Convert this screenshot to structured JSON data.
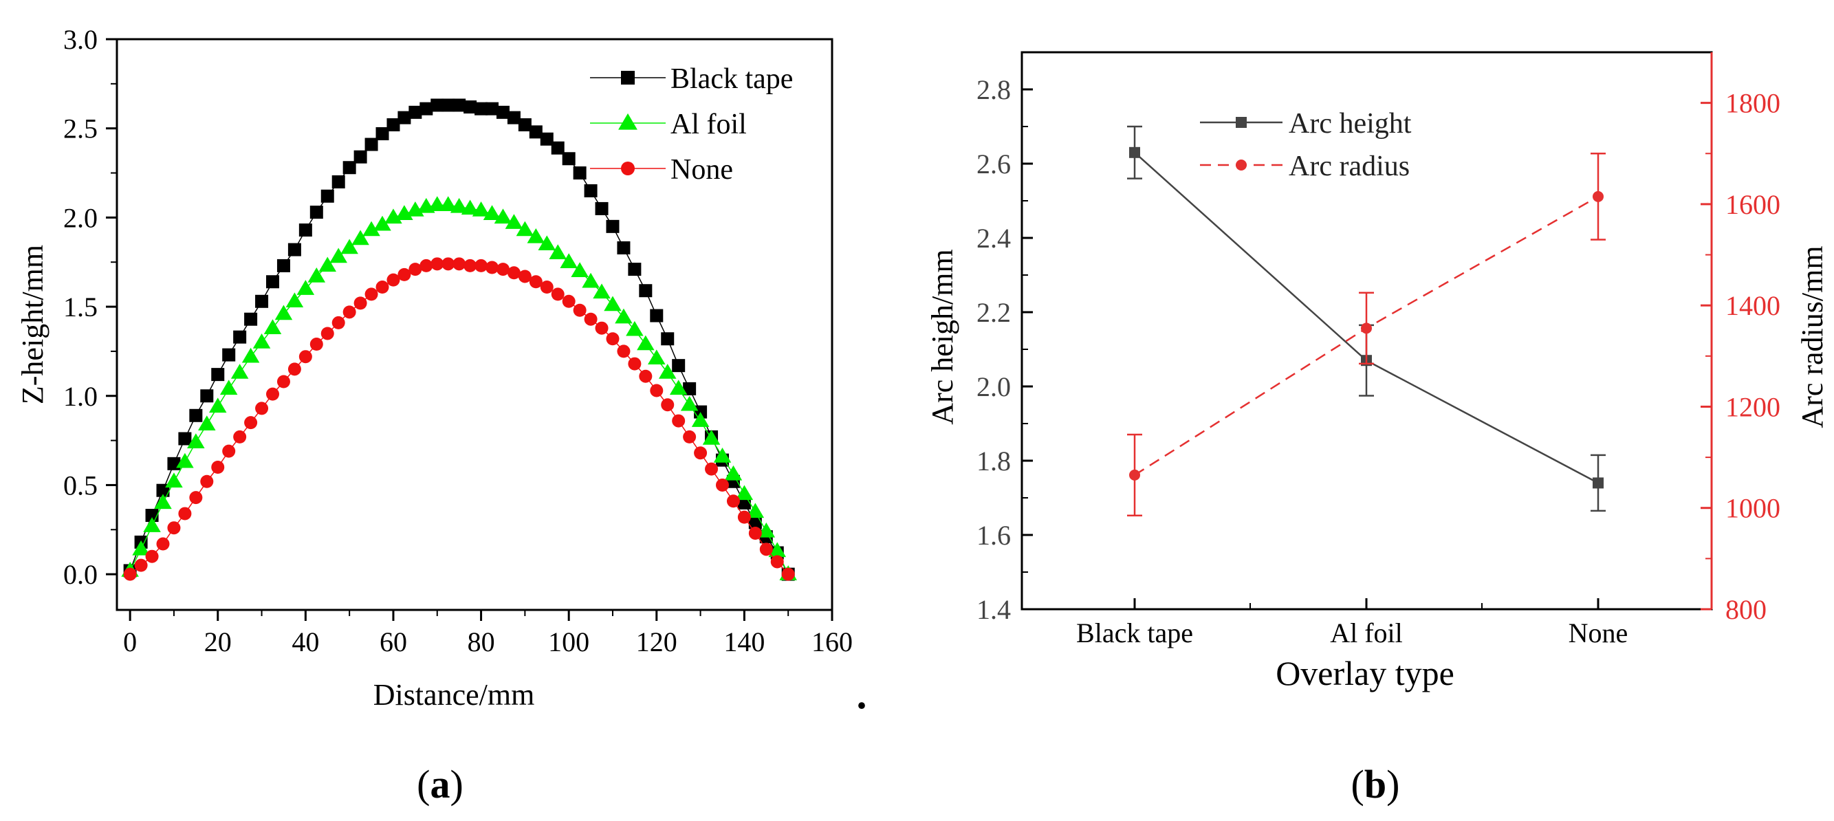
{
  "panels": {
    "a_label": "(a)",
    "b_label": "(b)",
    "stray_mark": "."
  },
  "colors": {
    "black_tape": "#000000",
    "al_foil": "#00ee00",
    "none": "#ee1111",
    "arc_height": "#444444",
    "arc_radius": "#e53030"
  },
  "chart_data": [
    {
      "id": "a",
      "type": "scatter",
      "xlabel": "Distance/mm",
      "ylabel": "Z-height/mm",
      "xlim": [
        -3,
        160
      ],
      "ylim": [
        -0.2,
        3.0
      ],
      "xticks": [
        "0",
        "20",
        "40",
        "60",
        "80",
        "100",
        "120",
        "140",
        "160"
      ],
      "yticks": [
        "0.0",
        "0.5",
        "1.0",
        "1.5",
        "2.0",
        "2.5",
        "3.0"
      ],
      "legend_position": "top-right",
      "marker_step_mm": 2.5,
      "series": [
        {
          "name": "Black tape",
          "marker": "square",
          "color": "#000000",
          "line": true,
          "x": [
            0,
            2.5,
            5,
            7.5,
            10,
            12.5,
            15,
            17.5,
            20,
            22.5,
            25,
            27.5,
            30,
            32.5,
            35,
            37.5,
            40,
            42.5,
            45,
            47.5,
            50,
            52.5,
            55,
            57.5,
            60,
            62.5,
            65,
            67.5,
            70,
            72.5,
            75,
            77.5,
            80,
            82.5,
            85,
            87.5,
            90,
            92.5,
            95,
            97.5,
            100,
            102.5,
            105,
            107.5,
            110,
            112.5,
            115,
            117.5,
            120,
            122.5,
            125,
            127.5,
            130,
            132.5,
            135,
            137.5,
            140,
            142.5,
            145,
            147.5,
            150
          ],
          "y": [
            0.02,
            0.18,
            0.33,
            0.47,
            0.62,
            0.76,
            0.89,
            1.0,
            1.12,
            1.23,
            1.33,
            1.43,
            1.53,
            1.64,
            1.73,
            1.82,
            1.93,
            2.03,
            2.12,
            2.2,
            2.28,
            2.34,
            2.41,
            2.47,
            2.52,
            2.56,
            2.59,
            2.61,
            2.63,
            2.63,
            2.63,
            2.62,
            2.61,
            2.61,
            2.59,
            2.56,
            2.52,
            2.48,
            2.44,
            2.39,
            2.33,
            2.25,
            2.15,
            2.05,
            1.95,
            1.83,
            1.71,
            1.59,
            1.45,
            1.32,
            1.17,
            1.04,
            0.91,
            0.77,
            0.64,
            0.52,
            0.4,
            0.29,
            0.21,
            0.12,
            0.0
          ]
        },
        {
          "name": "Al foil",
          "marker": "triangle",
          "color": "#00ee00",
          "line": true,
          "x": [
            0,
            2.5,
            5,
            7.5,
            10,
            12.5,
            15,
            17.5,
            20,
            22.5,
            25,
            27.5,
            30,
            32.5,
            35,
            37.5,
            40,
            42.5,
            45,
            47.5,
            50,
            52.5,
            55,
            57.5,
            60,
            62.5,
            65,
            67.5,
            70,
            72.5,
            75,
            77.5,
            80,
            82.5,
            85,
            87.5,
            90,
            92.5,
            95,
            97.5,
            100,
            102.5,
            105,
            107.5,
            110,
            112.5,
            115,
            117.5,
            120,
            122.5,
            125,
            127.5,
            130,
            132.5,
            135,
            137.5,
            140,
            142.5,
            145,
            147.5,
            150
          ],
          "y": [
            0.02,
            0.14,
            0.27,
            0.4,
            0.52,
            0.63,
            0.74,
            0.84,
            0.94,
            1.04,
            1.13,
            1.22,
            1.3,
            1.38,
            1.46,
            1.53,
            1.6,
            1.67,
            1.73,
            1.78,
            1.83,
            1.88,
            1.93,
            1.96,
            2.0,
            2.02,
            2.04,
            2.06,
            2.07,
            2.07,
            2.06,
            2.05,
            2.04,
            2.02,
            2.0,
            1.97,
            1.93,
            1.89,
            1.85,
            1.8,
            1.75,
            1.7,
            1.64,
            1.58,
            1.51,
            1.44,
            1.37,
            1.29,
            1.21,
            1.13,
            1.04,
            0.95,
            0.86,
            0.76,
            0.66,
            0.56,
            0.45,
            0.35,
            0.24,
            0.13,
            0.0
          ]
        },
        {
          "name": "None",
          "marker": "circle",
          "color": "#ee1111",
          "line": true,
          "x": [
            0,
            2.5,
            5,
            7.5,
            10,
            12.5,
            15,
            17.5,
            20,
            22.5,
            25,
            27.5,
            30,
            32.5,
            35,
            37.5,
            40,
            42.5,
            45,
            47.5,
            50,
            52.5,
            55,
            57.5,
            60,
            62.5,
            65,
            67.5,
            70,
            72.5,
            75,
            77.5,
            80,
            82.5,
            85,
            87.5,
            90,
            92.5,
            95,
            97.5,
            100,
            102.5,
            105,
            107.5,
            110,
            112.5,
            115,
            117.5,
            120,
            122.5,
            125,
            127.5,
            130,
            132.5,
            135,
            137.5,
            140,
            142.5,
            145,
            147.5,
            150
          ],
          "y": [
            0.0,
            0.05,
            0.1,
            0.17,
            0.26,
            0.34,
            0.43,
            0.52,
            0.6,
            0.69,
            0.77,
            0.85,
            0.93,
            1.01,
            1.08,
            1.15,
            1.22,
            1.29,
            1.35,
            1.41,
            1.47,
            1.52,
            1.57,
            1.61,
            1.65,
            1.68,
            1.71,
            1.73,
            1.74,
            1.74,
            1.74,
            1.73,
            1.73,
            1.72,
            1.71,
            1.69,
            1.67,
            1.64,
            1.61,
            1.57,
            1.53,
            1.48,
            1.43,
            1.38,
            1.32,
            1.25,
            1.18,
            1.11,
            1.03,
            0.95,
            0.86,
            0.77,
            0.68,
            0.59,
            0.5,
            0.41,
            0.32,
            0.23,
            0.14,
            0.07,
            0.0
          ]
        }
      ]
    },
    {
      "id": "b",
      "type": "line",
      "xlabel": "Overlay type",
      "ylabel": "Arc heigh/mm",
      "y2label": "Arc radius/mm",
      "categories": [
        "Black tape",
        "Al foil",
        "None"
      ],
      "ylim": [
        1.4,
        2.9
      ],
      "y2lim": [
        800,
        1900
      ],
      "yticks": [
        "1.4",
        "1.6",
        "1.8",
        "2.0",
        "2.2",
        "2.4",
        "2.6",
        "2.8"
      ],
      "y2ticks": [
        "800",
        "1000",
        "1200",
        "1400",
        "1600",
        "1800"
      ],
      "legend_position": "top-left",
      "series": [
        {
          "name": "Arc height",
          "axis": "left",
          "style": "solid",
          "marker": "square",
          "color": "#444444",
          "values": [
            2.63,
            2.07,
            1.74
          ],
          "errors": [
            0.07,
            0.095,
            0.075
          ]
        },
        {
          "name": "Arc radius",
          "axis": "right",
          "style": "dashed",
          "marker": "circle",
          "color": "#e53030",
          "values": [
            1065,
            1355,
            1615
          ],
          "errors": [
            80,
            70,
            85
          ]
        }
      ]
    }
  ]
}
